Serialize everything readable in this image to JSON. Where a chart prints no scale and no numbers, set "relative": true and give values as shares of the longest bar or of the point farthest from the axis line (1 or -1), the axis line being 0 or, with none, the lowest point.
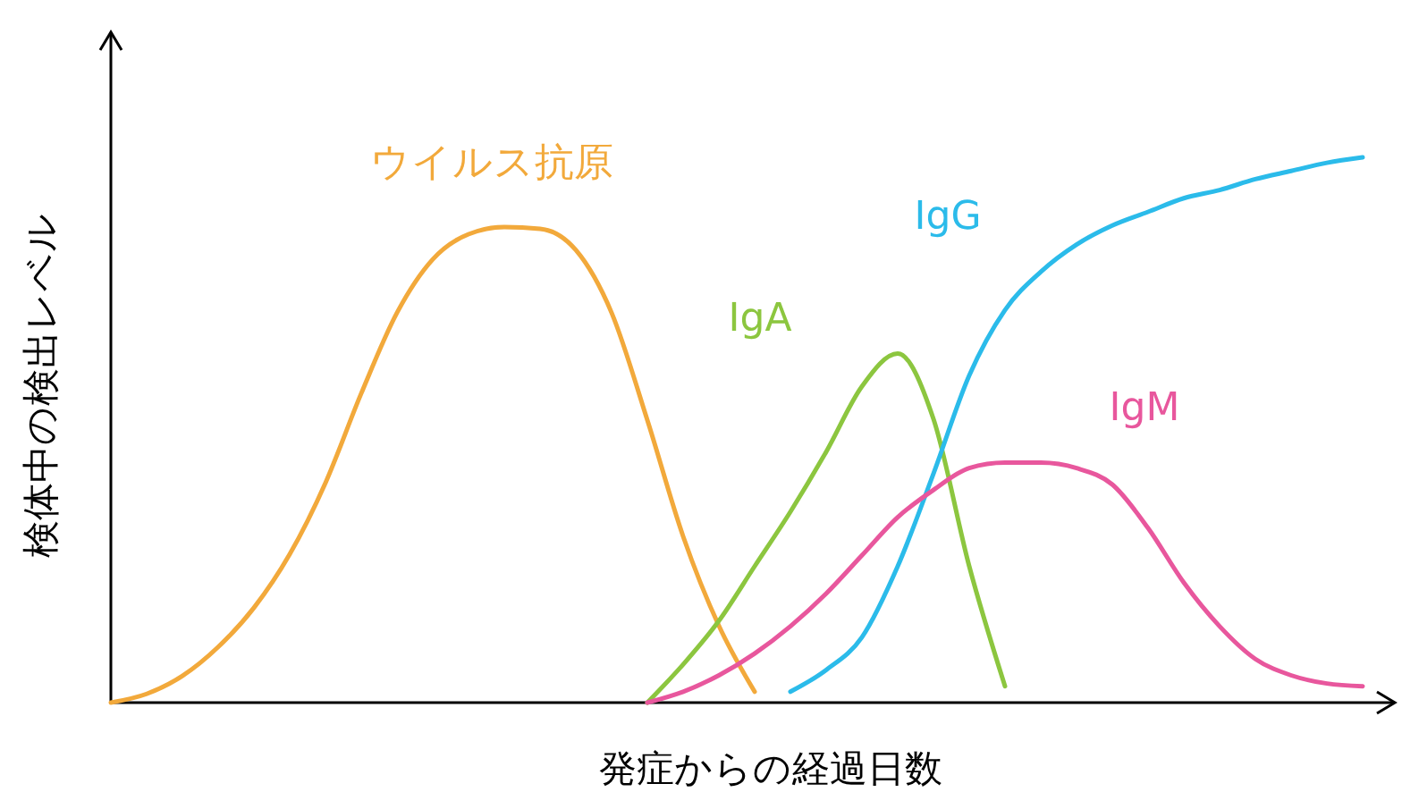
{
  "chart_data": {
    "type": "line",
    "relative": true,
    "marker": "none",
    "line_style": "solid",
    "xlabel": "発症からの経過日数",
    "ylabel": "検体中の検出レベル",
    "categories": [
      null,
      null,
      null,
      null,
      null,
      null,
      null,
      null,
      null,
      null,
      null,
      null,
      null,
      null,
      null,
      null,
      null,
      null,
      null,
      null,
      null,
      null,
      null,
      null,
      null,
      null,
      null,
      null,
      null,
      null,
      null,
      null,
      null,
      null,
      null,
      null
    ],
    "series": [
      {
        "name": "ウイルス抗原",
        "color": "#f2a93b",
        "values": [
          0,
          0.016,
          0.049,
          0.102,
          0.174,
          0.272,
          0.403,
          0.567,
          0.715,
          0.813,
          0.859,
          0.872,
          0.869,
          0.83,
          0.715,
          0.518,
          0.305,
          0.141,
          0.02,
          null,
          null,
          null,
          null,
          null,
          null,
          null,
          null,
          null,
          null,
          null,
          null,
          null,
          null,
          null,
          null,
          null
        ]
      },
      {
        "name": "IgA",
        "color": "#8cc63f",
        "values": [
          null,
          null,
          null,
          null,
          null,
          null,
          null,
          null,
          null,
          null,
          null,
          null,
          null,
          null,
          null,
          0,
          0.07,
          0.15,
          0.25,
          0.35,
          0.46,
          0.58,
          0.64,
          0.52,
          0.25,
          0.03,
          null,
          null,
          null,
          null,
          null,
          null,
          null,
          null,
          null,
          null
        ]
      },
      {
        "name": "IgG",
        "color": "#2bbbea",
        "values": [
          null,
          null,
          null,
          null,
          null,
          null,
          null,
          null,
          null,
          null,
          null,
          null,
          null,
          null,
          null,
          null,
          null,
          null,
          null,
          0.02,
          0.06,
          0.12,
          0.25,
          0.42,
          0.6,
          0.72,
          0.79,
          0.84,
          0.875,
          0.9,
          0.925,
          0.94,
          0.96,
          0.975,
          0.99,
          1
        ]
      },
      {
        "name": "IgM",
        "color": "#e8579d",
        "values": [
          null,
          null,
          null,
          null,
          null,
          null,
          null,
          null,
          null,
          null,
          null,
          null,
          null,
          null,
          null,
          0,
          0.02,
          0.05,
          0.09,
          0.14,
          0.2,
          0.27,
          0.34,
          0.39,
          0.43,
          0.44,
          0.44,
          0.43,
          0.4,
          0.32,
          0.22,
          0.14,
          0.08,
          0.05,
          0.035,
          0.03
        ]
      }
    ]
  }
}
